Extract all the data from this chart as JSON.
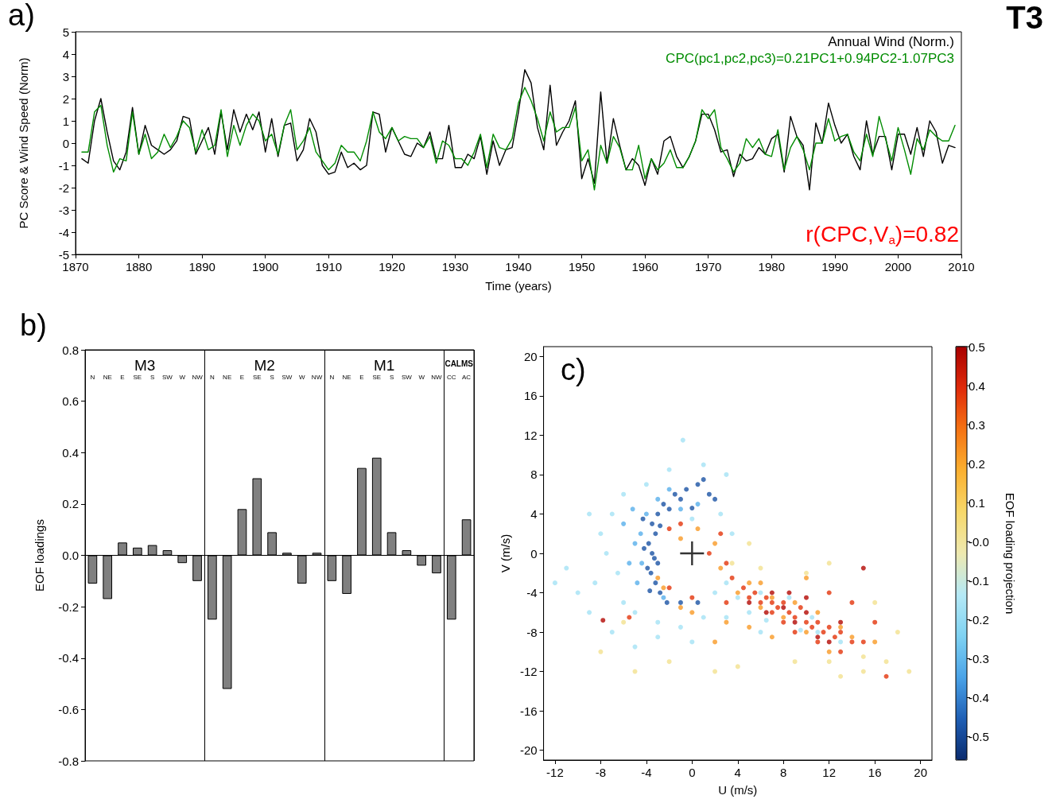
{
  "chart_data": [
    {
      "type": "line",
      "ylabel": "PC Score & Wind Speed (Norm)",
      "xlabel": "Time (years)",
      "legend": "top right",
      "marker": "none",
      "line_style": "solid",
      "xlim": [
        1870,
        2010
      ],
      "xticks": [
        1870,
        1880,
        1890,
        1900,
        1910,
        1920,
        1930,
        1940,
        1950,
        1960,
        1970,
        1980,
        1990,
        2000,
        2010
      ],
      "ylim": [
        -5,
        5
      ],
      "yticks": [
        -5,
        -4,
        -3,
        -2,
        -1,
        0,
        1,
        2,
        3,
        4,
        5
      ],
      "annotations": [
        "a)",
        "T3",
        "r(CPC,V$_{a}$)=0.82"
      ],
      "x": [
        1871,
        1872,
        1873,
        1874,
        1875,
        1876,
        1877,
        1878,
        1879,
        1880,
        1881,
        1882,
        1883,
        1884,
        1885,
        1886,
        1887,
        1888,
        1889,
        1890,
        1891,
        1892,
        1893,
        1894,
        1895,
        1896,
        1897,
        1898,
        1899,
        1900,
        1901,
        1902,
        1903,
        1904,
        1905,
        1906,
        1907,
        1908,
        1909,
        1910,
        1911,
        1912,
        1913,
        1914,
        1915,
        1916,
        1917,
        1918,
        1919,
        1920,
        1921,
        1922,
        1923,
        1924,
        1925,
        1926,
        1927,
        1928,
        1929,
        1930,
        1931,
        1932,
        1933,
        1934,
        1935,
        1936,
        1937,
        1938,
        1939,
        1940,
        1941,
        1942,
        1943,
        1944,
        1945,
        1946,
        1947,
        1948,
        1949,
        1950,
        1951,
        1952,
        1953,
        1954,
        1955,
        1956,
        1957,
        1958,
        1959,
        1960,
        1961,
        1962,
        1963,
        1964,
        1965,
        1966,
        1967,
        1968,
        1969,
        1970,
        1971,
        1972,
        1973,
        1974,
        1975,
        1976,
        1977,
        1978,
        1979,
        1980,
        1981,
        1982,
        1983,
        1984,
        1985,
        1986,
        1987,
        1988,
        1989,
        1990,
        1991,
        1992,
        1993,
        1994,
        1995,
        1996,
        1997,
        1998,
        1999,
        2000,
        2001,
        2002,
        2003,
        2004,
        2005,
        2006,
        2007,
        2008,
        2009
      ],
      "series": [
        {
          "name": "Annual Wind (Norm.)",
          "color": "#000000",
          "values": [
            -0.7,
            -0.9,
            1.0,
            2.0,
            0.5,
            -0.8,
            -1.2,
            -0.4,
            1.6,
            -0.5,
            0.8,
            -0.1,
            -0.3,
            -0.5,
            -0.3,
            0.1,
            1.2,
            1.1,
            -0.5,
            0.1,
            0.7,
            -0.5,
            1.4,
            -0.3,
            1.5,
            0.5,
            1.3,
            0.6,
            1.4,
            -0.4,
            1.1,
            -0.6,
            0.8,
            0.9,
            -0.8,
            -0.3,
            1.1,
            0.5,
            -1.0,
            -1.4,
            -1.3,
            -0.4,
            -1.1,
            -0.9,
            -1.2,
            -1.0,
            1.4,
            1.3,
            -0.4,
            0.7,
            0.1,
            -0.5,
            -0.6,
            0.0,
            -0.2,
            0.5,
            -0.7,
            -0.7,
            0.8,
            -1.1,
            -1.1,
            -0.5,
            -0.7,
            0.3,
            -1.4,
            0.1,
            -1.0,
            -0.3,
            -0.2,
            1.4,
            3.3,
            2.7,
            0.7,
            -0.3,
            2.6,
            -0.1,
            0.5,
            1.0,
            1.9,
            -1.6,
            -0.7,
            -1.8,
            2.3,
            -0.9,
            1.1,
            -0.1,
            -1.2,
            -0.7,
            -1.0,
            -1.9,
            -0.7,
            -1.4,
            0.1,
            0.3,
            -0.6,
            -1.1,
            -0.6,
            0.1,
            1.3,
            1.3,
            0.6,
            -0.4,
            -0.3,
            -1.5,
            -0.5,
            -0.8,
            -0.7,
            -0.2,
            -0.5,
            0.2,
            0.4,
            -1.3,
            1.2,
            0.3,
            -0.1,
            -2.1,
            0.9,
            0.0,
            1.8,
            0.8,
            0.0,
            0.4,
            -0.6,
            -1.2,
            1.0,
            -0.5,
            0.3,
            0.3,
            -1.2,
            0.4,
            0.4,
            -0.5,
            0.7,
            -0.6,
            1.0,
            0.5,
            -0.9,
            -0.1,
            -0.2
          ]
        },
        {
          "name": "CPC(pc1,pc2,pc3)=0.21PC1+0.94PC2-1.07PC3",
          "color": "#008c00",
          "values": [
            -0.4,
            -0.4,
            1.4,
            1.7,
            -0.1,
            -1.3,
            -0.7,
            -0.8,
            1.4,
            -0.5,
            0.4,
            -0.7,
            -0.4,
            0.4,
            -0.2,
            0.3,
            1.0,
            0.7,
            -0.4,
            0.6,
            -0.3,
            -0.1,
            1.5,
            -0.6,
            0.8,
            -0.1,
            0.8,
            1.3,
            1.0,
            0.1,
            0.4,
            -0.5,
            0.8,
            1.5,
            -0.3,
            0.1,
            0.7,
            -0.4,
            -0.8,
            -1.2,
            -0.9,
            -0.1,
            -0.4,
            -0.4,
            -0.8,
            0.1,
            1.4,
            0.5,
            0.2,
            0.7,
            0.1,
            0.3,
            0.2,
            0.2,
            -0.2,
            0.3,
            -0.9,
            0.1,
            -0.1,
            -0.7,
            -0.7,
            -1.0,
            -0.4,
            0.4,
            -1.1,
            0.4,
            -0.2,
            -0.3,
            0.2,
            1.8,
            2.5,
            1.9,
            1.1,
            0.1,
            1.4,
            0.5,
            0.7,
            0.7,
            1.6,
            -0.8,
            -0.3,
            -2.1,
            -0.1,
            -0.9,
            0.3,
            -0.2,
            -1.2,
            -1.2,
            -0.1,
            -1.6,
            -0.7,
            -1.2,
            -0.9,
            -0.3,
            -1.1,
            -1.1,
            -0.6,
            0.1,
            1.5,
            1.1,
            1.5,
            -0.2,
            -0.7,
            -1.3,
            -0.9,
            0.2,
            -0.2,
            0.2,
            -0.5,
            -0.6,
            0.6,
            -1.2,
            -0.2,
            0.3,
            -0.3,
            -1.2,
            0.0,
            0.0,
            1.1,
            0.1,
            0.3,
            0.4,
            -0.4,
            -0.8,
            0.4,
            -0.6,
            1.2,
            0.2,
            -0.8,
            0.7,
            -0.3,
            -1.4,
            0.2,
            -0.3,
            0.6,
            0.3,
            0.1,
            0.1,
            0.8
          ]
        }
      ]
    },
    {
      "type": "bar",
      "ylabel": "EOF loadings",
      "annotations": [
        "b)",
        "M3",
        "M2",
        "M1",
        "CALMS"
      ],
      "categories": [
        "N",
        "NE",
        "E",
        "SE",
        "S",
        "SW",
        "W",
        "NW",
        "N",
        "NE",
        "E",
        "SE",
        "S",
        "SW",
        "W",
        "NW",
        "N",
        "NE",
        "E",
        "SE",
        "S",
        "SW",
        "W",
        "NW",
        "CC",
        "AC"
      ],
      "values": [
        -0.11,
        -0.17,
        0.05,
        0.03,
        0.04,
        0.02,
        -0.03,
        -0.1,
        -0.25,
        -0.52,
        0.18,
        0.3,
        0.09,
        0.01,
        -0.11,
        0.01,
        -0.1,
        -0.15,
        0.34,
        0.38,
        0.09,
        0.02,
        -0.04,
        -0.07,
        -0.25,
        0.14
      ],
      "color": "#808080",
      "ylim": [
        -0.8,
        0.8
      ],
      "yticks": [
        -0.8,
        -0.6,
        -0.4,
        -0.2,
        {
          "value": 0,
          "label": "0.0"
        },
        0.2,
        0.4,
        0.6,
        0.8
      ],
      "ref_lines": [
        {
          "axis": "y",
          "value": 0,
          "color": "#000000"
        }
      ]
    },
    {
      "type": "scatter",
      "xlabel": "U (m/s)",
      "ylabel": "V (m/s)",
      "clabel": "EOF loading projection",
      "annotations": [
        "c)"
      ],
      "marker": "circle",
      "xlim": [
        -13,
        21
      ],
      "xticks": [
        -12,
        -8,
        -4,
        0,
        4,
        8,
        12,
        16,
        20
      ],
      "ylim": [
        -21,
        21
      ],
      "yticks": [
        -20,
        -16,
        -12,
        -8,
        -4,
        0,
        4,
        8,
        12,
        16,
        20
      ],
      "clim": [
        -0.56,
        0.5
      ],
      "cticks": [
        0.5,
        0.4,
        0.3,
        0.2,
        0.1,
        {
          "value": 0,
          "label": "-0.0"
        },
        -0.1,
        -0.2,
        -0.3,
        -0.4,
        -0.5
      ],
      "series": [
        {
          "x": [
            -8,
            -5,
            -2,
            2,
            4,
            9,
            12,
            15,
            17,
            19,
            5,
            3.5,
            6,
            10,
            12,
            16,
            18,
            -6,
            13,
            15
          ],
          "values": [
            -10,
            -12,
            -11,
            -12,
            -11.5,
            -11,
            -11,
            -10.5,
            -11,
            -12,
            1,
            -1,
            -1.5,
            -2,
            -1,
            -5,
            -8,
            -7,
            -12.5,
            -12
          ],
          "cvalues": [
            0.02,
            0.02,
            0.02,
            0.02,
            0.02,
            0.02,
            0.02,
            0.02,
            0.02,
            0.02,
            0.02,
            0.02,
            0.02,
            0.02,
            0.02,
            0.02,
            0.02,
            0.02,
            0.02,
            0.02
          ]
        },
        {
          "x": [
            -7,
            -8,
            -9,
            -7.5,
            -6.5,
            -8.5,
            -6,
            -5,
            -3,
            -1,
            1,
            2,
            3,
            4,
            5,
            3,
            6,
            6.5,
            9.5,
            11,
            13,
            -4,
            -2,
            -0.8,
            1,
            3,
            2.5,
            3.5,
            -6,
            -3,
            -10,
            -11,
            -12,
            0,
            -7,
            -5,
            8.5,
            10.5,
            6,
            0,
            -9
          ],
          "values": [
            4,
            2,
            4,
            0,
            -2,
            -3,
            -5,
            -6,
            -7,
            -7.5,
            -6.5,
            -4,
            -3,
            -4.5,
            -6,
            -6.5,
            -4,
            -6.8,
            -7.8,
            -8,
            -9,
            7,
            8.5,
            11.5,
            9,
            8,
            4,
            2,
            6,
            -8.5,
            -4,
            -1.5,
            -3,
            3.5,
            -8,
            -9.5,
            -4.5,
            -6.5,
            -8,
            -9,
            -6
          ],
          "cvalues": [
            -0.17,
            -0.17,
            -0.17,
            -0.17,
            -0.17,
            -0.17,
            -0.17,
            -0.17,
            -0.17,
            -0.17,
            -0.17,
            -0.17,
            -0.17,
            -0.17,
            -0.17,
            -0.17,
            -0.17,
            -0.17,
            -0.17,
            -0.17,
            -0.17,
            -0.17,
            -0.17,
            -0.17,
            -0.17,
            -0.17,
            -0.17,
            -0.17,
            -0.17,
            -0.17,
            -0.17,
            -0.17,
            -0.17,
            -0.17,
            -0.17,
            -0.17,
            -0.17,
            -0.17,
            -0.17,
            -0.17,
            -0.17
          ]
        },
        {
          "x": [
            -3,
            -2.5,
            -1,
            0.5,
            2,
            2.5,
            4,
            5,
            6,
            7,
            8,
            9,
            10,
            11,
            13,
            14,
            3,
            5,
            0,
            -1,
            6,
            10,
            2,
            7,
            12,
            16
          ],
          "values": [
            -2.5,
            -3.5,
            1.5,
            2.5,
            1,
            -1.5,
            -4,
            -3,
            -5.5,
            -4.5,
            -6.5,
            -5,
            -8,
            -6,
            -7.5,
            -8.5,
            -7,
            -7.5,
            -6,
            -5.5,
            -3,
            -2.5,
            -9,
            -8.5,
            -10,
            -9
          ],
          "cvalues": [
            0.22,
            0.22,
            0.22,
            0.22,
            0.22,
            0.22,
            0.22,
            0.22,
            0.22,
            0.22,
            0.22,
            0.22,
            0.22,
            0.22,
            0.22,
            0.22,
            0.22,
            0.22,
            0.22,
            0.22,
            0.22,
            0.22,
            0.22,
            0.22,
            0.22,
            0.22
          ]
        },
        {
          "x": [
            -4.5,
            -5,
            -4,
            -3,
            -2,
            -5.5,
            -4.8,
            -4.4,
            -1,
            0.5,
            -2.5,
            -6,
            -5.2
          ],
          "values": [
            2,
            1,
            4,
            5.5,
            6.5,
            -1,
            -3,
            -1,
            4.5,
            5,
            -4.5,
            3,
            4.5
          ],
          "cvalues": [
            -0.32,
            -0.32,
            -0.32,
            -0.32,
            -0.32,
            -0.32,
            -0.32,
            -0.32,
            -0.32,
            -0.32,
            -0.32,
            -0.32,
            -0.32
          ]
        },
        {
          "x": [
            -3.5,
            -3.2,
            -3.8,
            -3.5,
            -3,
            -3.6,
            -3.2,
            -2.8,
            -3.9,
            -4.2,
            -3,
            -2.5,
            -1.5,
            -0.5,
            0.5,
            1,
            1.5,
            2,
            -2,
            -1,
            -3.7,
            -2.2,
            -1,
            0.5,
            -4.3,
            -3.3,
            -2.8,
            0
          ],
          "values": [
            3,
            2,
            1,
            0,
            -1,
            -2,
            -3,
            -4,
            -1.5,
            0.5,
            4,
            5,
            6,
            6.5,
            7,
            7.5,
            6,
            5.5,
            4.5,
            5.5,
            -3.8,
            -5,
            -5,
            -5,
            3.5,
            -0.5,
            2.8,
            4.6
          ],
          "cvalues": [
            -0.48,
            -0.48,
            -0.48,
            -0.48,
            -0.48,
            -0.48,
            -0.48,
            -0.48,
            -0.48,
            -0.48,
            -0.48,
            -0.48,
            -0.48,
            -0.48,
            -0.48,
            -0.48,
            -0.48,
            -0.48,
            -0.48,
            -0.48,
            -0.48,
            -0.48,
            -0.48,
            -0.48,
            -0.48,
            -0.48,
            -0.48,
            -0.48
          ]
        },
        {
          "x": [
            1.5,
            3,
            3.5,
            4.5,
            5.5,
            6.5,
            7,
            7.5,
            8,
            8.5,
            9,
            9.5,
            10,
            10.5,
            11,
            11.5,
            12,
            12.5,
            13,
            14,
            15,
            5,
            6,
            7,
            8,
            9,
            11,
            13,
            -5.5,
            -1,
            -2,
            2.5,
            12,
            14,
            17,
            16,
            -2,
            3,
            0
          ],
          "values": [
            0,
            -1,
            -2.5,
            -3.5,
            -4,
            -4.5,
            -5,
            -5.5,
            -5,
            -6,
            -6.5,
            -5.5,
            -7,
            -7.5,
            -7,
            -8,
            -7.5,
            -8.5,
            -8,
            -9,
            -9,
            -4.5,
            -5,
            -6,
            -7,
            -8,
            -9,
            -10,
            -6.5,
            3,
            2.5,
            2,
            -4,
            -5,
            -12.5,
            -7,
            -3.5,
            -5,
            -4.5
          ],
          "cvalues": [
            0.38,
            0.38,
            0.38,
            0.38,
            0.38,
            0.38,
            0.38,
            0.38,
            0.38,
            0.38,
            0.38,
            0.38,
            0.38,
            0.38,
            0.38,
            0.38,
            0.38,
            0.38,
            0.38,
            0.38,
            0.38,
            0.38,
            0.38,
            0.38,
            0.38,
            0.38,
            0.38,
            0.38,
            0.38,
            0.38,
            0.38,
            0.38,
            0.38,
            0.38,
            0.38,
            0.38,
            0.38,
            0.38,
            0.38
          ]
        },
        {
          "x": [
            7,
            8,
            9,
            10,
            11,
            12,
            13,
            8.5,
            10,
            -7.8,
            15,
            5,
            6.5
          ],
          "values": [
            -4,
            -5.5,
            -7,
            -6,
            -8.5,
            -9,
            -7,
            -4,
            -4.5,
            -6.8,
            -1.5,
            -5,
            -6
          ],
          "cvalues": [
            0.48,
            0.48,
            0.48,
            0.48,
            0.48,
            0.48,
            0.48,
            0.48,
            0.48,
            0.48,
            0.48,
            0.48,
            0.48
          ]
        },
        {
          "type": "scatter",
          "marker": "cross",
          "color": "#000000",
          "x": [
            0
          ],
          "values": [
            0
          ]
        }
      ]
    }
  ]
}
